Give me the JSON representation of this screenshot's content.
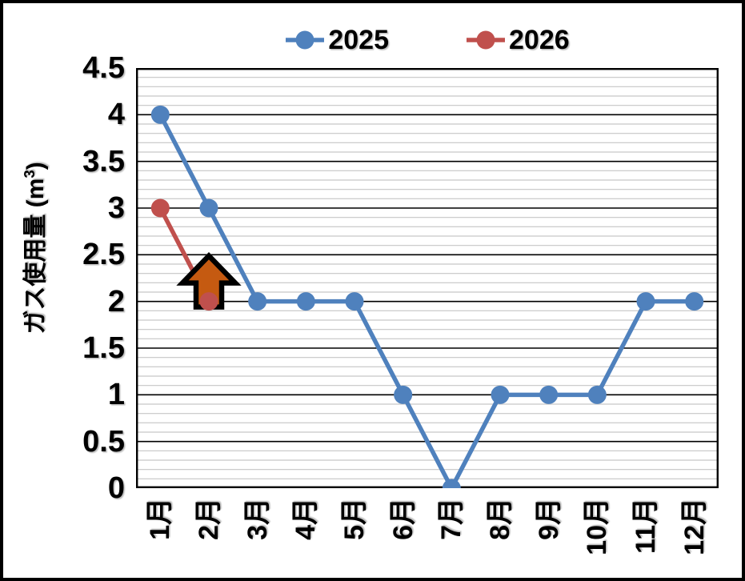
{
  "chart_data": {
    "type": "line",
    "title": "",
    "categories": [
      "1月",
      "2月",
      "3月",
      "4月",
      "5月",
      "6月",
      "7月",
      "8月",
      "9月",
      "10月",
      "11月",
      "12月"
    ],
    "series": [
      {
        "name": "2025",
        "color": "#4F81BD",
        "values": [
          4,
          3,
          2,
          2,
          2,
          1,
          0,
          1,
          1,
          1,
          2,
          2
        ]
      },
      {
        "name": "2026",
        "color": "#C0504D",
        "values": [
          3,
          2,
          null,
          null,
          null,
          null,
          null,
          null,
          null,
          null,
          null,
          null
        ]
      }
    ],
    "xlabel": "",
    "ylabel": "ガス使用量 (m³)",
    "ylim": [
      0,
      4.5
    ],
    "y_major_unit": 0.5,
    "y_minor_unit": 0.1,
    "y_ticks": [
      "0",
      "0.5",
      "1",
      "1.5",
      "2",
      "2.5",
      "3",
      "3.5",
      "4",
      "4.5"
    ],
    "grid": "horizontal major (black) + minor (light gray)",
    "legend_position": "top-center",
    "annotation": {
      "shape": "block-arrow-up",
      "fill": "#C55A11",
      "stroke": "#000000",
      "at_category": "2月",
      "points_to_value": 2
    }
  },
  "legend": {
    "items": [
      {
        "label": "2025",
        "color": "#4F81BD"
      },
      {
        "label": "2026",
        "color": "#C0504D"
      }
    ]
  },
  "axes": {
    "y_label_unit_base": "ガス使用量 (m",
    "y_label_sup": "3",
    "y_label_close": ")"
  },
  "colors": {
    "background": "#FFFFFF",
    "frame_border": "#000000",
    "plot_border": "#000000",
    "major_grid": "#000000",
    "minor_grid": "#C6C6C6",
    "text": "#000000"
  }
}
